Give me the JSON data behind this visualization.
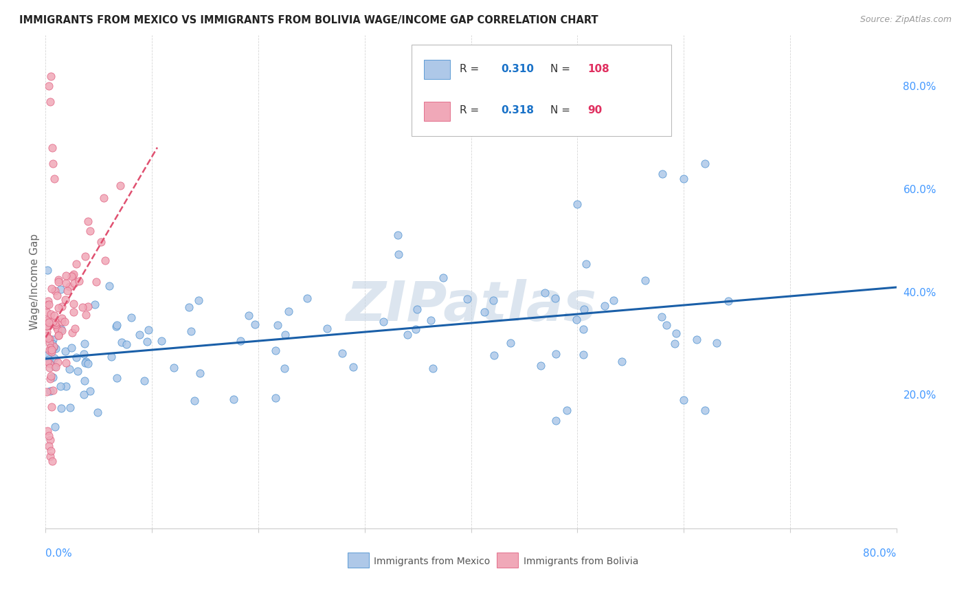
{
  "title": "IMMIGRANTS FROM MEXICO VS IMMIGRANTS FROM BOLIVIA WAGE/INCOME GAP CORRELATION CHART",
  "source": "Source: ZipAtlas.com",
  "ylabel": "Wage/Income Gap",
  "legend_r_mexico": "0.310",
  "legend_n_mexico": "108",
  "legend_r_bolivia": "0.318",
  "legend_n_bolivia": "90",
  "legend_label_mexico": "Immigrants from Mexico",
  "legend_label_bolivia": "Immigrants from Bolivia",
  "watermark": "ZIPatlas",
  "color_mexico_fill": "#aec8e8",
  "color_mexico_edge": "#4a90d0",
  "color_bolivia_fill": "#f0a8b8",
  "color_bolivia_edge": "#e06080",
  "color_trend_mexico": "#1a5fa8",
  "color_trend_bolivia": "#e05070",
  "color_r_value": "#1a72c8",
  "color_n_value": "#e03060",
  "color_axis_labels": "#4499ff",
  "color_grid": "#cccccc",
  "color_ylabel": "#666666",
  "watermark_color": "#c5d5e5",
  "xmin": 0.0,
  "xmax": 0.8,
  "ymin": -0.06,
  "ymax": 0.9,
  "right_ytick_vals": [
    0.2,
    0.4,
    0.6,
    0.8
  ],
  "right_ytick_labels": [
    "20.0%",
    "40.0%",
    "60.0%",
    "80.0%"
  ],
  "xtick_vals": [
    0.0,
    0.1,
    0.2,
    0.3,
    0.4,
    0.5,
    0.6,
    0.7,
    0.8
  ]
}
